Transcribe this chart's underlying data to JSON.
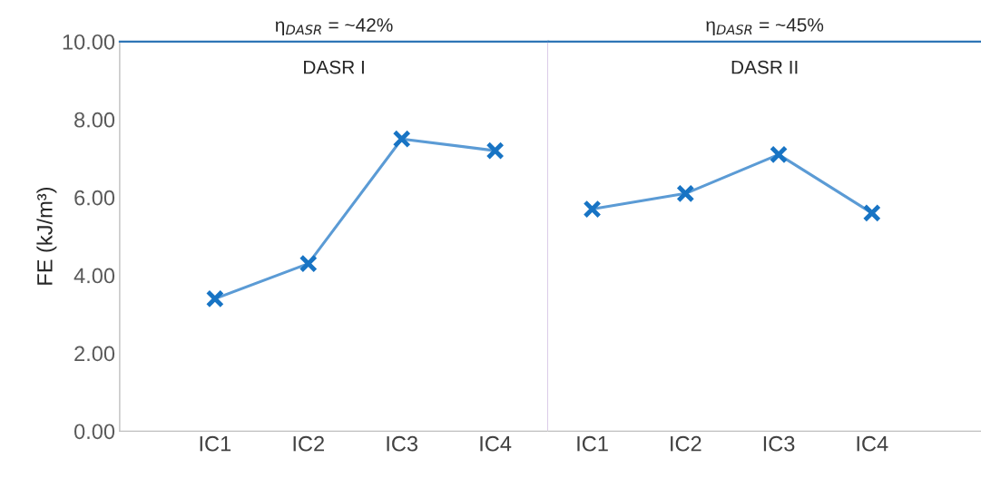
{
  "chart_data": [
    {
      "type": "line",
      "title": "η$_{DASR}$ = ~42%",
      "annotations": [
        "DASR I"
      ],
      "ylabel": "FE (kJ/m³)",
      "categories": [
        "IC1",
        "IC2",
        "IC3",
        "IC4"
      ],
      "values": [
        3.4,
        4.3,
        7.5,
        7.2
      ],
      "color": "#5b9bd5",
      "marker": "cross",
      "ylim": [
        0,
        10
      ],
      "yticks": [
        {
          "value": 0,
          "label": "0.00"
        },
        {
          "value": 2,
          "label": "2.00"
        },
        {
          "value": 4,
          "label": "4.00"
        },
        {
          "value": 6,
          "label": "6.00"
        },
        {
          "value": 8,
          "label": "8.00"
        },
        {
          "value": 10,
          "label": "10.00"
        }
      ],
      "grid": false
    },
    {
      "type": "line",
      "title": "η$_{DASR}$ = ~45%",
      "annotations": [
        "DASR II"
      ],
      "categories": [
        "IC1",
        "IC2",
        "IC3",
        "IC4"
      ],
      "values": [
        5.7,
        6.1,
        7.1,
        5.6
      ],
      "color": "#5b9bd5",
      "marker": "cross",
      "ylim": [
        0,
        10
      ],
      "tick_labels": "x",
      "grid": false
    }
  ]
}
